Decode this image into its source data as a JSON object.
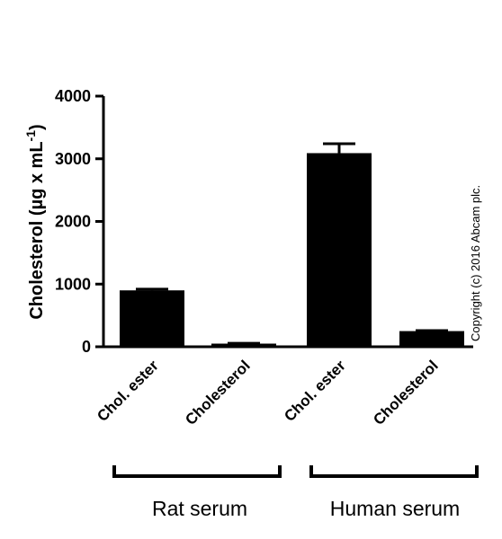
{
  "chart_data": {
    "type": "bar",
    "categories": [
      "Chol. ester",
      "Cholesterol",
      "Chol. ester",
      "Cholesterol"
    ],
    "values": [
      900,
      50,
      3090,
      250
    ],
    "errors": [
      20,
      5,
      150,
      8
    ],
    "ylabel_main": "Cholesterol (µg x mL",
    "ylabel_sup": "-1",
    "ylabel_close": ")",
    "ylim": [
      0,
      4000
    ],
    "yticks": [
      "0",
      "1000",
      "2000",
      "3000",
      "4000"
    ],
    "groups": [
      {
        "label": "Rat serum"
      },
      {
        "label": "Human serum"
      }
    ],
    "bar_color": "#000000",
    "grid": false
  },
  "copyright": "Copyright (c) 2016 Abcam plc."
}
